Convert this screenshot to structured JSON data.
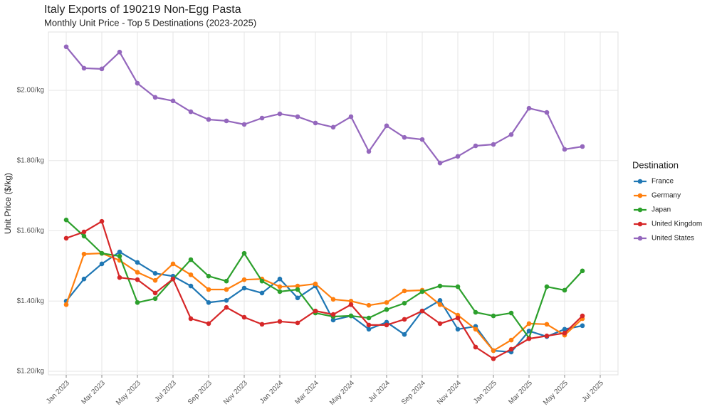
{
  "chart_data": {
    "type": "line",
    "title": "Italy Exports of 190219 Non-Egg Pasta",
    "subtitle": "Monthly Unit Price - Top 5 Destinations (2023-2025)",
    "y_label": "Unit Price ($/kg)",
    "legend_title": "Destination",
    "legend_position": "right",
    "grid": true,
    "x": [
      "2023-01",
      "2023-02",
      "2023-03",
      "2023-04",
      "2023-05",
      "2023-06",
      "2023-07",
      "2023-08",
      "2023-09",
      "2023-10",
      "2023-11",
      "2023-12",
      "2024-01",
      "2024-02",
      "2024-03",
      "2024-04",
      "2024-05",
      "2024-06",
      "2024-07",
      "2024-08",
      "2024-09",
      "2024-10",
      "2024-11",
      "2024-12",
      "2025-01",
      "2025-02",
      "2025-03",
      "2025-04",
      "2025-05",
      "2025-06"
    ],
    "xlim": [
      "2022-12",
      "2025-08"
    ],
    "xticks": [
      {
        "value": "2023-01",
        "label": "Jan 2023"
      },
      {
        "value": "2023-03",
        "label": "Mar 2023"
      },
      {
        "value": "2023-05",
        "label": "May 2023"
      },
      {
        "value": "2023-07",
        "label": "Jul 2023"
      },
      {
        "value": "2023-09",
        "label": "Sep 2023"
      },
      {
        "value": "2023-11",
        "label": "Nov 2023"
      },
      {
        "value": "2024-01",
        "label": "Jan 2024"
      },
      {
        "value": "2024-03",
        "label": "Mar 2024"
      },
      {
        "value": "2024-05",
        "label": "May 2024"
      },
      {
        "value": "2024-07",
        "label": "Jul 2024"
      },
      {
        "value": "2024-09",
        "label": "Sep 2024"
      },
      {
        "value": "2024-11",
        "label": "Nov 2024"
      },
      {
        "value": "2025-01",
        "label": "Jan 2025"
      },
      {
        "value": "2025-03",
        "label": "Mar 2025"
      },
      {
        "value": "2025-05",
        "label": "May 2025"
      },
      {
        "value": "2025-07",
        "label": "Jul 2025"
      }
    ],
    "ylim": [
      1.19,
      2.166
    ],
    "yticks": [
      {
        "value": 1.2,
        "label": "$1.20/kg"
      },
      {
        "value": 1.4,
        "label": "$1.40/kg"
      },
      {
        "value": 1.6,
        "label": "$1.60/kg"
      },
      {
        "value": 1.8,
        "label": "$1.80/kg"
      },
      {
        "value": 2.0,
        "label": "$2.00/kg"
      }
    ],
    "series": [
      {
        "name": "France",
        "color": "#1f77b4",
        "values": [
          1.4,
          1.463,
          1.506,
          1.54,
          1.51,
          1.479,
          1.471,
          1.443,
          1.396,
          1.402,
          1.437,
          1.423,
          1.463,
          1.409,
          1.443,
          1.346,
          1.358,
          1.32,
          1.34,
          1.305,
          1.372,
          1.402,
          1.32,
          1.328,
          1.259,
          1.255,
          1.315,
          1.299,
          1.32,
          1.33
        ]
      },
      {
        "name": "Germany",
        "color": "#ff7f0e",
        "values": [
          1.39,
          1.534,
          1.536,
          1.516,
          1.482,
          1.459,
          1.506,
          1.475,
          1.433,
          1.433,
          1.461,
          1.463,
          1.441,
          1.443,
          1.449,
          1.405,
          1.4,
          1.388,
          1.396,
          1.429,
          1.431,
          1.39,
          1.36,
          1.32,
          1.259,
          1.289,
          1.336,
          1.334,
          1.303,
          1.35
        ]
      },
      {
        "name": "Japan",
        "color": "#2ca02c",
        "values": [
          1.631,
          1.585,
          1.536,
          1.528,
          1.396,
          1.407,
          1.463,
          1.518,
          1.471,
          1.457,
          1.536,
          1.457,
          1.427,
          1.433,
          1.366,
          1.356,
          1.358,
          1.352,
          1.376,
          1.394,
          1.427,
          1.443,
          1.441,
          1.368,
          1.358,
          1.366,
          1.295,
          1.441,
          1.431,
          1.486
        ]
      },
      {
        "name": "United Kingdom",
        "color": "#d62728",
        "values": [
          1.579,
          1.597,
          1.627,
          1.467,
          1.461,
          1.423,
          1.463,
          1.35,
          1.336,
          1.382,
          1.354,
          1.334,
          1.342,
          1.338,
          1.372,
          1.362,
          1.39,
          1.332,
          1.332,
          1.348,
          1.372,
          1.336,
          1.352,
          1.269,
          1.236,
          1.263,
          1.293,
          1.301,
          1.309,
          1.358
        ]
      },
      {
        "name": "United States",
        "color": "#9467bd",
        "values": [
          2.124,
          2.063,
          2.061,
          2.109,
          2.02,
          1.98,
          1.97,
          1.939,
          1.917,
          1.913,
          1.903,
          1.921,
          1.933,
          1.925,
          1.907,
          1.895,
          1.925,
          1.826,
          1.899,
          1.866,
          1.86,
          1.793,
          1.812,
          1.842,
          1.846,
          1.874,
          1.949,
          1.937,
          1.832,
          1.84
        ]
      }
    ]
  }
}
